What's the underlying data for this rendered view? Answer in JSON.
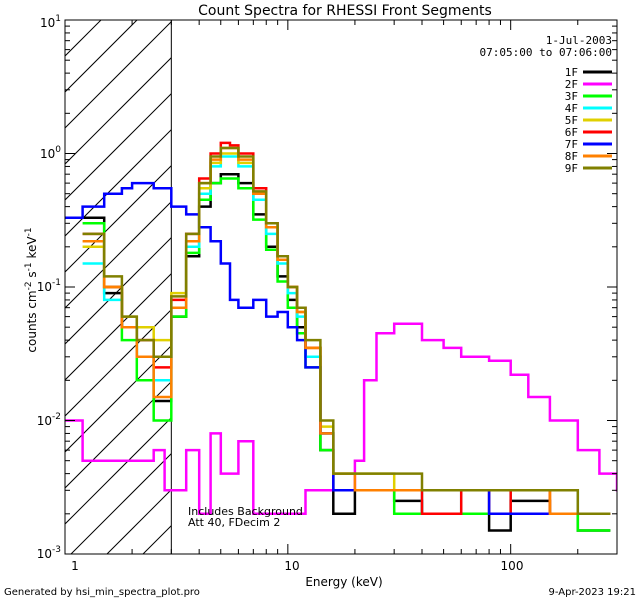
{
  "chart_data": {
    "type": "line",
    "title": "Count Spectra for RHESSI Front Segments",
    "xlabel": "Energy (keV)",
    "ylabel": "counts cm-2 s-1 keV-1",
    "ylabel_parts": {
      "base": "counts cm",
      "exp1": "-2",
      "mid1": " s",
      "exp2": "-1",
      "mid2": " keV",
      "exp3": "-1"
    },
    "xscale": "log",
    "yscale": "log",
    "xlim": [
      1,
      300
    ],
    "ylim": [
      0.001,
      10
    ],
    "x_tick_labels": [
      "1",
      "10",
      "100"
    ],
    "y_tick_labels": [
      {
        "base": "10",
        "exp": "-3"
      },
      {
        "base": "10",
        "exp": "-2"
      },
      {
        "base": "10",
        "exp": "-1"
      },
      {
        "base": "10",
        "exp": "0"
      },
      {
        "base": "10",
        "exp": "1"
      }
    ],
    "date": "1-Jul-2003",
    "time_range": "07:05:00 to 07:06:00",
    "hatched_region_keV": [
      1,
      3
    ],
    "annotation_lines": [
      "Includes Background",
      "Att 40, FDecim 2"
    ],
    "legend_position": "top-right",
    "series": [
      {
        "name": "1F",
        "color": "#000000",
        "x": [
          1.2,
          1.5,
          1.8,
          2.1,
          2.5,
          3.0,
          3.5,
          4.0,
          4.5,
          5.0,
          5.5,
          6.0,
          7.0,
          8.0,
          9.0,
          10.0,
          11.0,
          12.0,
          14.0,
          16.0,
          20.0,
          30.0,
          40.0,
          60.0,
          80.0,
          100.0,
          150.0,
          200.0,
          250.0
        ],
        "y": [
          0.33,
          0.09,
          0.05,
          0.03,
          0.014,
          0.06,
          0.17,
          0.4,
          0.6,
          0.7,
          0.7,
          0.6,
          0.35,
          0.2,
          0.12,
          0.08,
          0.05,
          0.03,
          0.006,
          0.002,
          0.003,
          0.0025,
          0.002,
          0.002,
          0.0015,
          0.0025,
          0.002,
          0.0015,
          0.0015
        ]
      },
      {
        "name": "2F",
        "color": "#ff00ff",
        "x": [
          1.0,
          1.2,
          1.5,
          2.0,
          2.5,
          2.8,
          3.0,
          3.5,
          4.0,
          4.5,
          5.0,
          6.0,
          7.0,
          8.0,
          10.0,
          12.0,
          15.0,
          18.0,
          20.0,
          22.0,
          25.0,
          30.0,
          40.0,
          50.0,
          60.0,
          80.0,
          100.0,
          120.0,
          150.0,
          200.0,
          250.0,
          300.0
        ],
        "y": [
          0.01,
          0.005,
          0.005,
          0.005,
          0.006,
          0.003,
          0.003,
          0.006,
          0.002,
          0.008,
          0.004,
          0.007,
          0.002,
          0.002,
          0.002,
          0.003,
          0.003,
          0.003,
          0.005,
          0.02,
          0.045,
          0.053,
          0.04,
          0.035,
          0.03,
          0.028,
          0.022,
          0.015,
          0.01,
          0.006,
          0.004,
          0.003
        ]
      },
      {
        "name": "3F",
        "color": "#00ff00",
        "x": [
          1.2,
          1.5,
          1.8,
          2.1,
          2.5,
          3.0,
          3.5,
          4.0,
          4.5,
          5.0,
          5.5,
          6.0,
          7.0,
          8.0,
          9.0,
          10.0,
          11.0,
          12.0,
          14.0,
          16.0,
          20.0,
          30.0,
          40.0,
          60.0,
          80.0,
          100.0,
          150.0,
          200.0,
          250.0
        ],
        "y": [
          0.3,
          0.1,
          0.04,
          0.02,
          0.01,
          0.06,
          0.18,
          0.45,
          0.6,
          0.65,
          0.65,
          0.55,
          0.32,
          0.19,
          0.11,
          0.07,
          0.045,
          0.025,
          0.006,
          0.003,
          0.003,
          0.002,
          0.002,
          0.002,
          0.002,
          0.002,
          0.002,
          0.0015,
          0.0015
        ]
      },
      {
        "name": "4F",
        "color": "#00ffff",
        "x": [
          1.2,
          1.5,
          1.8,
          2.1,
          2.5,
          3.0,
          3.5,
          4.0,
          4.5,
          5.0,
          5.5,
          6.0,
          7.0,
          8.0,
          9.0,
          10.0,
          11.0,
          12.0,
          14.0,
          16.0,
          20.0,
          30.0,
          40.0,
          60.0,
          80.0,
          100.0,
          150.0,
          200.0,
          250.0
        ],
        "y": [
          0.15,
          0.08,
          0.05,
          0.03,
          0.02,
          0.07,
          0.2,
          0.5,
          0.8,
          0.95,
          0.95,
          0.8,
          0.45,
          0.25,
          0.15,
          0.09,
          0.06,
          0.03,
          0.008,
          0.003,
          0.003,
          0.003,
          0.002,
          0.003,
          0.002,
          0.003,
          0.003,
          0.002,
          0.002
        ]
      },
      {
        "name": "5F",
        "color": "#e0d000",
        "x": [
          1.2,
          1.5,
          1.8,
          2.1,
          2.5,
          3.0,
          3.5,
          4.0,
          4.5,
          5.0,
          5.5,
          6.0,
          7.0,
          8.0,
          9.0,
          10.0,
          11.0,
          12.0,
          14.0,
          16.0,
          20.0,
          30.0,
          40.0,
          60.0,
          80.0,
          100.0,
          150.0,
          200.0,
          250.0
        ],
        "y": [
          0.2,
          0.1,
          0.06,
          0.05,
          0.04,
          0.09,
          0.22,
          0.55,
          0.85,
          1.0,
          1.0,
          0.85,
          0.5,
          0.28,
          0.16,
          0.1,
          0.065,
          0.035,
          0.009,
          0.004,
          0.004,
          0.003,
          0.003,
          0.003,
          0.003,
          0.003,
          0.002,
          0.002,
          0.002
        ]
      },
      {
        "name": "6F",
        "color": "#ff0000",
        "x": [
          1.2,
          1.5,
          1.8,
          2.1,
          2.5,
          3.0,
          3.5,
          4.0,
          4.5,
          5.0,
          5.5,
          6.0,
          7.0,
          8.0,
          9.0,
          10.0,
          11.0,
          12.0,
          14.0,
          16.0,
          20.0,
          30.0,
          40.0,
          60.0,
          80.0,
          100.0,
          150.0,
          200.0,
          250.0
        ],
        "y": [
          0.25,
          0.1,
          0.05,
          0.04,
          0.025,
          0.08,
          0.25,
          0.65,
          1.0,
          1.2,
          1.15,
          1.0,
          0.55,
          0.3,
          0.17,
          0.1,
          0.07,
          0.035,
          0.008,
          0.003,
          0.003,
          0.003,
          0.002,
          0.003,
          0.002,
          0.003,
          0.002,
          0.002,
          0.002
        ]
      },
      {
        "name": "7F",
        "color": "#0000ff",
        "x": [
          1.0,
          1.2,
          1.5,
          1.8,
          2.0,
          2.5,
          3.0,
          3.5,
          4.0,
          4.5,
          5.0,
          5.5,
          6.0,
          7.0,
          8.0,
          9.0,
          10.0,
          11.0,
          12.0,
          14.0,
          16.0,
          20.0,
          30.0,
          40.0,
          60.0,
          80.0,
          100.0,
          150.0,
          200.0,
          250.0
        ],
        "y": [
          0.33,
          0.4,
          0.5,
          0.55,
          0.6,
          0.55,
          0.4,
          0.35,
          0.28,
          0.22,
          0.15,
          0.08,
          0.07,
          0.08,
          0.06,
          0.065,
          0.05,
          0.04,
          0.025,
          0.008,
          0.003,
          0.003,
          0.003,
          0.003,
          0.003,
          0.002,
          0.002,
          0.002,
          0.002,
          0.002
        ]
      },
      {
        "name": "8F",
        "color": "#ff8000",
        "x": [
          1.2,
          1.5,
          1.8,
          2.1,
          2.5,
          3.0,
          3.5,
          4.0,
          4.5,
          5.0,
          5.5,
          6.0,
          7.0,
          8.0,
          9.0,
          10.0,
          11.0,
          12.0,
          14.0,
          16.0,
          20.0,
          30.0,
          40.0,
          60.0,
          80.0,
          100.0,
          150.0,
          200.0,
          250.0
        ],
        "y": [
          0.22,
          0.1,
          0.05,
          0.03,
          0.015,
          0.07,
          0.22,
          0.6,
          0.9,
          1.1,
          1.1,
          0.9,
          0.5,
          0.28,
          0.16,
          0.1,
          0.065,
          0.035,
          0.008,
          0.004,
          0.003,
          0.003,
          0.003,
          0.003,
          0.003,
          0.003,
          0.002,
          0.002,
          0.002
        ]
      },
      {
        "name": "9F",
        "color": "#808000",
        "x": [
          1.2,
          1.5,
          1.8,
          2.1,
          2.5,
          3.0,
          3.5,
          4.0,
          4.5,
          5.0,
          5.5,
          6.0,
          7.0,
          8.0,
          9.0,
          10.0,
          11.0,
          12.0,
          14.0,
          16.0,
          20.0,
          30.0,
          40.0,
          60.0,
          80.0,
          100.0,
          150.0,
          200.0,
          250.0
        ],
        "y": [
          0.25,
          0.12,
          0.06,
          0.04,
          0.03,
          0.085,
          0.25,
          0.6,
          0.95,
          1.1,
          1.1,
          0.95,
          0.52,
          0.3,
          0.17,
          0.1,
          0.07,
          0.04,
          0.01,
          0.004,
          0.004,
          0.004,
          0.003,
          0.003,
          0.003,
          0.003,
          0.003,
          0.002,
          0.002
        ]
      }
    ]
  },
  "footer": {
    "generated_by": "Generated by hsi_min_spectra_plot.pro",
    "timestamp": "9-Apr-2023 19:21"
  }
}
